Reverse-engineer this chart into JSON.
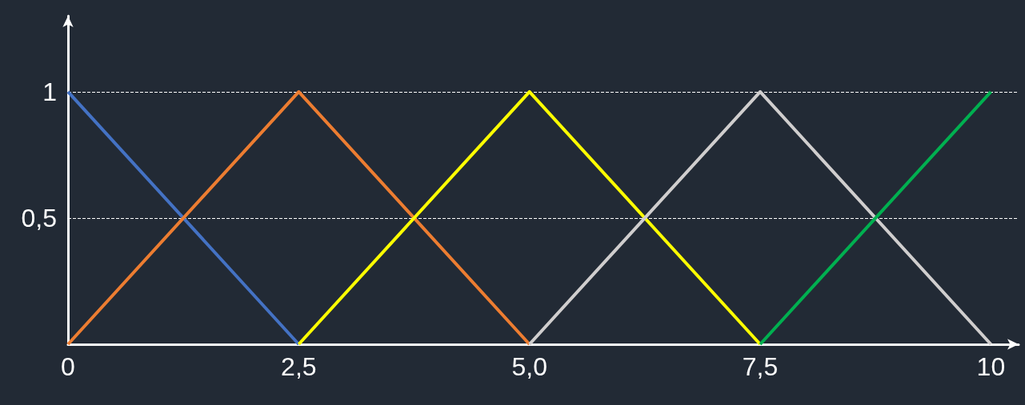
{
  "chart_data": {
    "type": "line",
    "xlim": [
      0,
      10.3
    ],
    "ylim": [
      0,
      1.3
    ],
    "xticks": [
      0,
      {
        "value": 2.5,
        "label": "2,5"
      },
      {
        "value": 5,
        "label": "5,0"
      },
      {
        "value": 7.5,
        "label": "7,5"
      },
      10
    ],
    "yticks": [
      {
        "value": 0.5,
        "label": "0,5"
      },
      1
    ],
    "grid": "y",
    "marker": "none",
    "line_style": "solid",
    "series": [
      {
        "color": "#4472c4",
        "x": [
          0,
          2.5
        ],
        "values": [
          1,
          0
        ]
      },
      {
        "color": "#ed7d31",
        "x": [
          0,
          2.5,
          5
        ],
        "values": [
          0,
          1,
          0
        ]
      },
      {
        "color": "#ffff00",
        "x": [
          2.5,
          5,
          7.5
        ],
        "values": [
          0,
          1,
          0
        ]
      },
      {
        "color": "#d0cece",
        "x": [
          5,
          7.5,
          10
        ],
        "values": [
          0,
          1,
          0
        ]
      },
      {
        "color": "#00b050",
        "x": [
          7.5,
          10
        ],
        "values": [
          0,
          1
        ]
      }
    ]
  }
}
